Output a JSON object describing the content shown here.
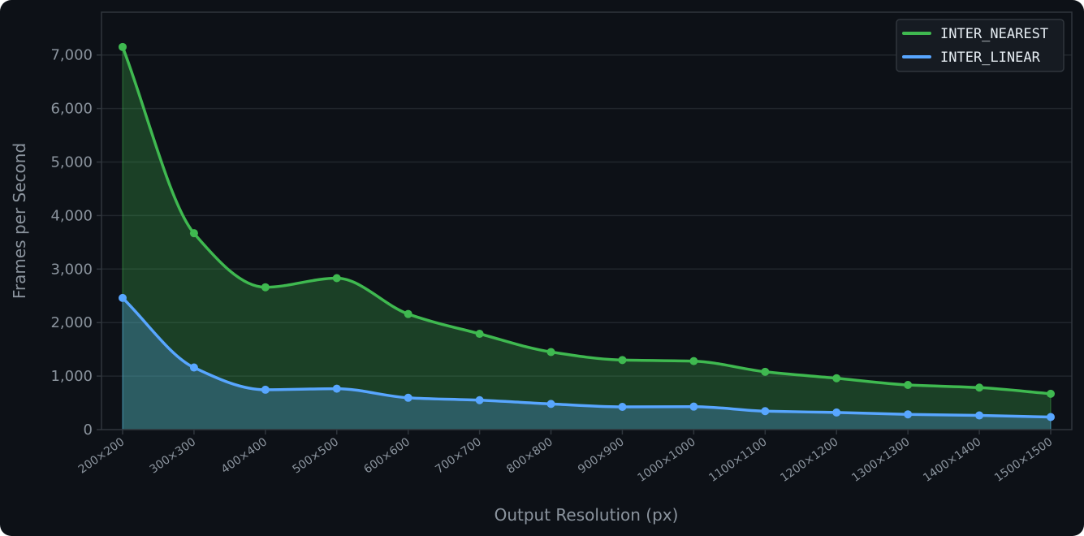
{
  "chart_data": {
    "type": "area",
    "title": "",
    "xlabel": "Output Resolution (px)",
    "ylabel": "Frames per Second",
    "categories": [
      "200×200",
      "300×300",
      "400×400",
      "500×500",
      "600×600",
      "700×700",
      "800×800",
      "900×900",
      "1000×1000",
      "1100×1100",
      "1200×1200",
      "1300×1300",
      "1400×1400",
      "1500×1500"
    ],
    "series": [
      {
        "name": "INTER_NEAREST",
        "color": "#3fb950",
        "values": [
          7150,
          3670,
          2660,
          2830,
          2160,
          1790,
          1450,
          1300,
          1280,
          1080,
          960,
          835,
          785,
          670
        ]
      },
      {
        "name": "INTER_LINEAR",
        "color": "#58a6ff",
        "values": [
          2460,
          1160,
          745,
          765,
          595,
          550,
          480,
          425,
          430,
          345,
          320,
          285,
          265,
          235
        ]
      }
    ],
    "ylim": [
      0,
      7800
    ],
    "yticks": [
      0,
      1000,
      2000,
      3000,
      4000,
      5000,
      6000,
      7000
    ],
    "ytick_labels": [
      "0",
      "1,000",
      "2,000",
      "3,000",
      "4,000",
      "5,000",
      "6,000",
      "7,000"
    ],
    "grid": true,
    "legend_position": "top-right",
    "style": {
      "background": "#0d1117",
      "grid_color": "#21262d",
      "frame_color": "#30363d",
      "text_color": "#8b949e",
      "legend_text_color": "#e6edf3",
      "legend_background": "#161b22"
    }
  }
}
